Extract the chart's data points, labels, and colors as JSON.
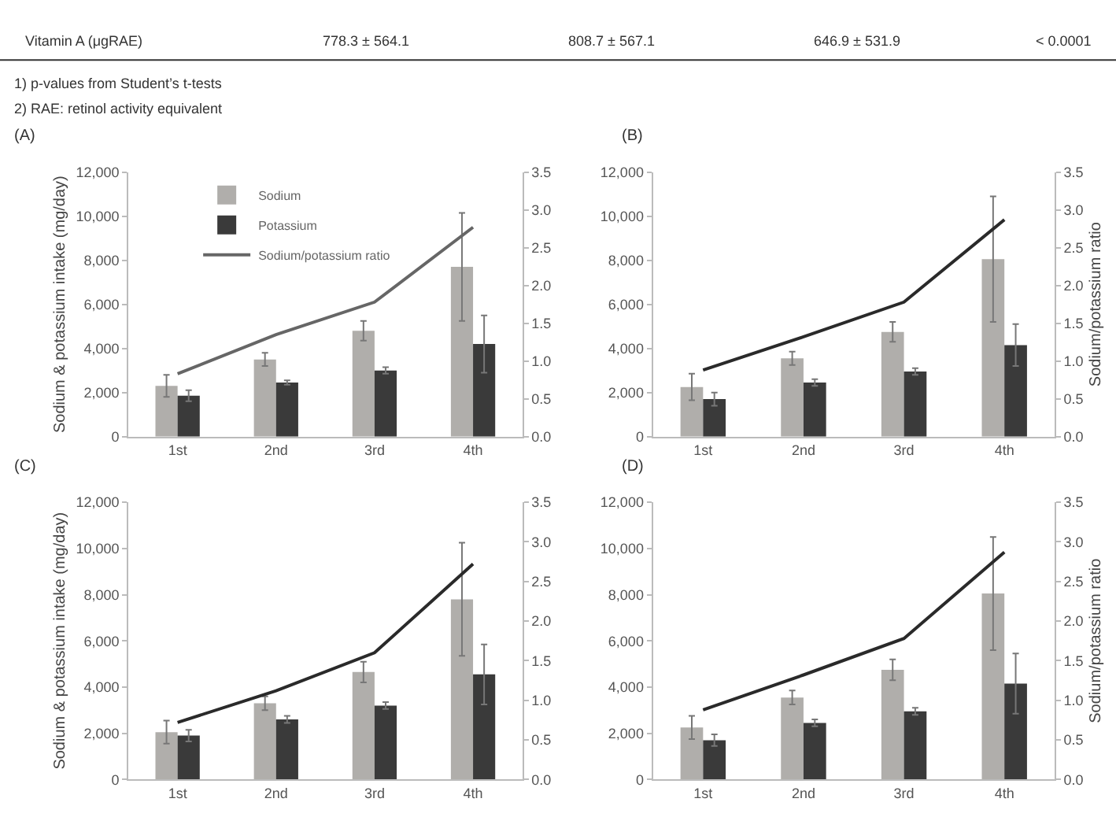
{
  "chart_data": [
    {
      "type": "other",
      "annotations": [
        "Vitamin A (μgRAE)",
        "778.3 ± 564.1",
        "808.7 ± 567.1",
        "646.9 ± 531.9",
        "< 0.0001",
        "1) p-values from Student’s t-tests",
        "2) RAE: retinol activity equivalent"
      ]
    },
    {
      "type": "bar",
      "title": "(A)",
      "ylabel": "Sodium & potassium intake (mg/day)",
      "categories": [
        "1st",
        "2nd",
        "3rd",
        "4th"
      ],
      "ylim": [
        0,
        12000
      ],
      "yticks": [
        {
          "value": 0,
          "label": "0"
        },
        {
          "value": 2000,
          "label": "2,000"
        },
        {
          "value": 4000,
          "label": "4,000"
        },
        {
          "value": 6000,
          "label": "6,000"
        },
        {
          "value": 8000,
          "label": "8,000"
        },
        {
          "value": 10000,
          "label": "10,000"
        },
        {
          "value": 12000,
          "label": "12,000"
        }
      ],
      "y2lim": [
        0,
        3.5
      ],
      "y2ticks": [
        {
          "value": 0,
          "label": "0.0"
        },
        {
          "value": 0.5,
          "label": "0.5"
        },
        {
          "value": 1,
          "label": "1.0"
        },
        {
          "value": 1.5,
          "label": "1.5"
        },
        {
          "value": 2,
          "label": "2.0"
        },
        {
          "value": 2.5,
          "label": "2.5"
        },
        {
          "value": 3,
          "label": "3.0"
        },
        {
          "value": 3.5,
          "label": "3.5"
        }
      ],
      "legend": "top left",
      "series": [
        {
          "name": "Sodium",
          "color": "#b0aeab",
          "values": [
            2300,
            3500,
            4800,
            7700
          ],
          "errors": [
            500,
            300,
            450,
            2450
          ]
        },
        {
          "name": "Potassium",
          "color": "#3a3a3a",
          "values": [
            1850,
            2450,
            3000,
            4200
          ],
          "errors": [
            250,
            100,
            150,
            1300
          ]
        },
        {
          "name": "Sodium/potassium ratio",
          "type": "line",
          "axis": "y2",
          "color": "#666666",
          "values": [
            0.83,
            1.35,
            1.78,
            2.77
          ]
        }
      ]
    },
    {
      "type": "bar",
      "title": "(B)",
      "y2label": "Sodium/potassium ratio",
      "categories": [
        "1st",
        "2nd",
        "3rd",
        "4th"
      ],
      "ylim": [
        0,
        12000
      ],
      "yticks": [
        {
          "value": 0,
          "label": "0"
        },
        {
          "value": 2000,
          "label": "2,000"
        },
        {
          "value": 4000,
          "label": "4,000"
        },
        {
          "value": 6000,
          "label": "6,000"
        },
        {
          "value": 8000,
          "label": "8,000"
        },
        {
          "value": 10000,
          "label": "10,000"
        },
        {
          "value": 12000,
          "label": "12,000"
        }
      ],
      "y2lim": [
        0,
        3.5
      ],
      "y2ticks": [
        {
          "value": 0,
          "label": "0.0"
        },
        {
          "value": 0.5,
          "label": "0.5"
        },
        {
          "value": 1,
          "label": "1.0"
        },
        {
          "value": 1.5,
          "label": "1.5"
        },
        {
          "value": 2,
          "label": "2.0"
        },
        {
          "value": 2.5,
          "label": "2.5"
        },
        {
          "value": 3,
          "label": "3.0"
        },
        {
          "value": 3.5,
          "label": "3.5"
        }
      ],
      "series": [
        {
          "color": "#b0aeab",
          "values": [
            2250,
            3550,
            4750,
            8050
          ],
          "errors": [
            600,
            300,
            450,
            2850
          ]
        },
        {
          "color": "#3a3a3a",
          "values": [
            1700,
            2450,
            2950,
            4150
          ],
          "errors": [
            300,
            150,
            150,
            950
          ]
        },
        {
          "type": "line",
          "axis": "y2",
          "color": "#2a2a2a",
          "values": [
            0.88,
            1.32,
            1.78,
            2.87
          ]
        }
      ]
    },
    {
      "type": "bar",
      "title": "(C)",
      "ylabel": "Sodium & potassium intake (mg/day)",
      "categories": [
        "1st",
        "2nd",
        "3rd",
        "4th"
      ],
      "ylim": [
        0,
        12000
      ],
      "yticks": [
        {
          "value": 0,
          "label": "0"
        },
        {
          "value": 2000,
          "label": "2,000"
        },
        {
          "value": 4000,
          "label": "4,000"
        },
        {
          "value": 6000,
          "label": "6,000"
        },
        {
          "value": 8000,
          "label": "8,000"
        },
        {
          "value": 10000,
          "label": "10,000"
        },
        {
          "value": 12000,
          "label": "12,000"
        }
      ],
      "y2lim": [
        0,
        3.5
      ],
      "y2ticks": [
        {
          "value": 0,
          "label": "0.0"
        },
        {
          "value": 0.5,
          "label": "0.5"
        },
        {
          "value": 1,
          "label": "1.0"
        },
        {
          "value": 1.5,
          "label": "1.5"
        },
        {
          "value": 2,
          "label": "2.0"
        },
        {
          "value": 2.5,
          "label": "2.5"
        },
        {
          "value": 3,
          "label": "3.0"
        },
        {
          "value": 3.5,
          "label": "3.5"
        }
      ],
      "series": [
        {
          "color": "#b0aeab",
          "values": [
            2050,
            3300,
            4650,
            7800
          ],
          "errors": [
            500,
            300,
            450,
            2450
          ]
        },
        {
          "color": "#3a3a3a",
          "values": [
            1900,
            2600,
            3200,
            4550
          ],
          "errors": [
            250,
            150,
            150,
            1300
          ]
        },
        {
          "type": "line",
          "axis": "y2",
          "color": "#2a2a2a",
          "values": [
            0.72,
            1.12,
            1.6,
            2.72
          ]
        }
      ]
    },
    {
      "type": "bar",
      "title": "(D)",
      "y2label": "Sodium/potassium ratio",
      "categories": [
        "1st",
        "2nd",
        "3rd",
        "4th"
      ],
      "ylim": [
        0,
        12000
      ],
      "yticks": [
        {
          "value": 0,
          "label": "0"
        },
        {
          "value": 2000,
          "label": "2,000"
        },
        {
          "value": 4000,
          "label": "4,000"
        },
        {
          "value": 6000,
          "label": "6,000"
        },
        {
          "value": 8000,
          "label": "8,000"
        },
        {
          "value": 10000,
          "label": "10,000"
        },
        {
          "value": 12000,
          "label": "12,000"
        }
      ],
      "y2lim": [
        0,
        3.5
      ],
      "y2ticks": [
        {
          "value": 0,
          "label": "0.0"
        },
        {
          "value": 0.5,
          "label": "0.5"
        },
        {
          "value": 1,
          "label": "1.0"
        },
        {
          "value": 1.5,
          "label": "1.5"
        },
        {
          "value": 2,
          "label": "2.0"
        },
        {
          "value": 2.5,
          "label": "2.5"
        },
        {
          "value": 3,
          "label": "3.0"
        },
        {
          "value": 3.5,
          "label": "3.5"
        }
      ],
      "series": [
        {
          "color": "#b0aeab",
          "values": [
            2250,
            3550,
            4750,
            8050
          ],
          "errors": [
            500,
            300,
            450,
            2450
          ]
        },
        {
          "color": "#3a3a3a",
          "values": [
            1700,
            2450,
            2950,
            4150
          ],
          "errors": [
            250,
            150,
            150,
            1300
          ]
        },
        {
          "type": "line",
          "axis": "y2",
          "color": "#2a2a2a",
          "values": [
            0.88,
            1.32,
            1.78,
            2.87
          ]
        }
      ]
    }
  ]
}
